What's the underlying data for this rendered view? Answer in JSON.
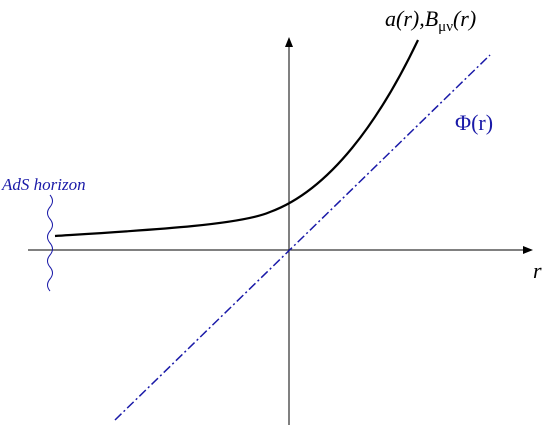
{
  "labels": {
    "curve": {
      "text": "a(r),B",
      "subscript": "μν",
      "suffix": "(r)"
    },
    "phi": "Φ(r)",
    "horizon": "AdS horizon",
    "axis": "r"
  }
}
